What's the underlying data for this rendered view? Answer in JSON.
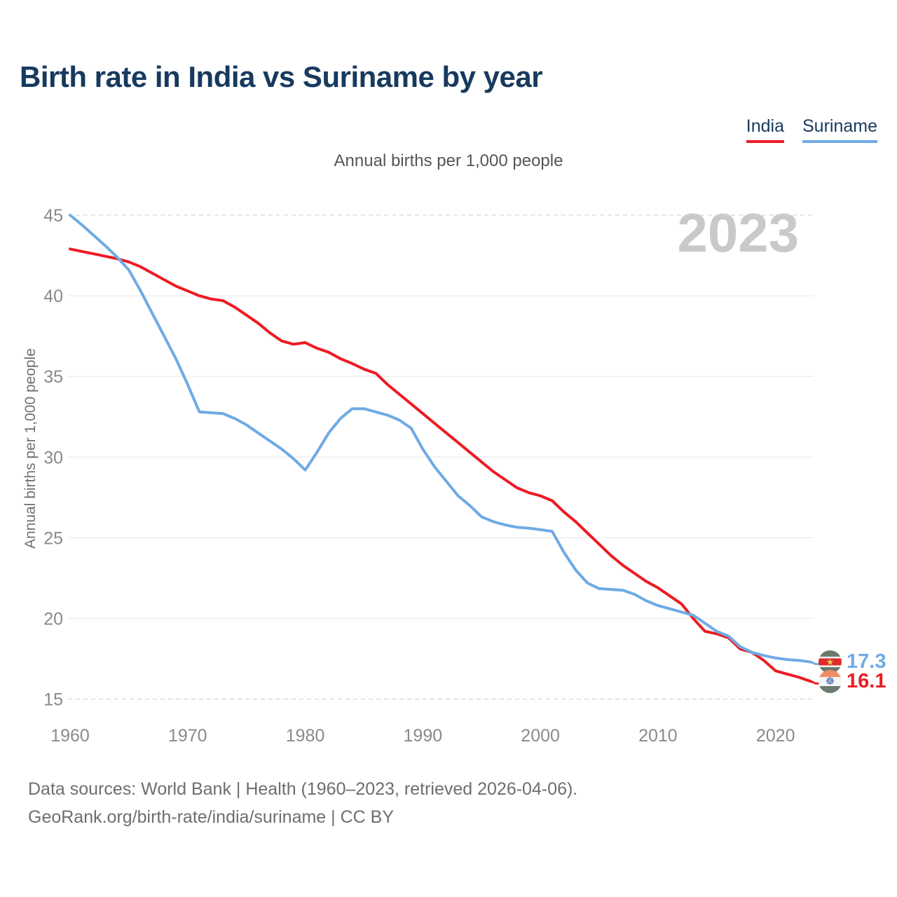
{
  "title": "Birth rate in India vs Suriname by year",
  "subtitle": "Annual births per 1,000 people",
  "watermark": "2023",
  "legend": {
    "india": {
      "label": "India",
      "color": "#ed1b24"
    },
    "suriname": {
      "label": "Suriname",
      "color": "#6fabe4"
    }
  },
  "y_axis": {
    "label": "Annual births per 1,000 people",
    "ticks": [
      45,
      40,
      35,
      30,
      25,
      20,
      15
    ]
  },
  "x_axis": {
    "ticks": [
      1960,
      1970,
      1980,
      1990,
      2000,
      2010,
      2020
    ]
  },
  "icons": {
    "suriname_star": "★",
    "india_chakra": "☸"
  },
  "end_labels": {
    "suriname": {
      "series": "Suriname",
      "value": "17.3",
      "color": "#6fabe4",
      "flag": "suriname-flag"
    },
    "india": {
      "series": "India",
      "value": "16.1",
      "color": "#ed1b24",
      "flag": "india-flag"
    }
  },
  "footer": {
    "line1": "Data sources: World Bank | Health (1960–2023, retrieved 2026-04-06).",
    "line2": "GeoRank.org/birth-rate/india/suriname | CC BY"
  },
  "chart_data": {
    "type": "line",
    "title": "Birth rate in India vs Suriname by year",
    "subtitle": "Annual births per 1,000 people",
    "xlabel": "",
    "ylabel": "Annual births per 1,000 people",
    "ylim": [
      15,
      45
    ],
    "xlim": [
      1960,
      2023
    ],
    "grid": "horizontal-dashed",
    "legend_position": "top-right",
    "watermark": "2023",
    "x": [
      1960,
      1961,
      1962,
      1963,
      1964,
      1965,
      1966,
      1967,
      1968,
      1969,
      1970,
      1971,
      1972,
      1973,
      1974,
      1975,
      1976,
      1977,
      1978,
      1979,
      1980,
      1981,
      1982,
      1983,
      1984,
      1985,
      1986,
      1987,
      1988,
      1989,
      1990,
      1991,
      1992,
      1993,
      1994,
      1995,
      1996,
      1997,
      1998,
      1999,
      2000,
      2001,
      2002,
      2003,
      2004,
      2005,
      2006,
      2007,
      2008,
      2009,
      2010,
      2011,
      2012,
      2013,
      2014,
      2015,
      2016,
      2017,
      2018,
      2019,
      2020,
      2021,
      2022,
      2023
    ],
    "series": [
      {
        "name": "India",
        "color": "#ed1b24",
        "values": [
          42.9,
          42.75,
          42.6,
          42.45,
          42.3,
          42.1,
          41.8,
          41.4,
          41.0,
          40.6,
          40.3,
          40.0,
          39.8,
          39.7,
          39.3,
          38.8,
          38.3,
          37.7,
          37.2,
          37.0,
          37.1,
          36.75,
          36.5,
          36.1,
          35.8,
          35.45,
          35.2,
          34.5,
          33.9,
          33.3,
          32.7,
          32.1,
          31.5,
          30.9,
          30.3,
          29.7,
          29.1,
          28.6,
          28.1,
          27.8,
          27.6,
          27.3,
          26.6,
          26.0,
          25.3,
          24.6,
          23.9,
          23.3,
          22.8,
          22.3,
          21.9,
          21.4,
          20.9,
          20.0,
          19.2,
          19.05,
          18.8,
          18.1,
          17.9,
          17.4,
          16.75,
          16.55,
          16.35,
          16.1
        ]
      },
      {
        "name": "Suriname",
        "color": "#6fabe4",
        "values": [
          45.0,
          44.4,
          43.75,
          43.1,
          42.4,
          41.6,
          40.3,
          38.9,
          37.5,
          36.1,
          34.5,
          32.8,
          32.75,
          32.7,
          32.4,
          32.0,
          31.5,
          31.0,
          30.5,
          29.9,
          29.2,
          30.3,
          31.5,
          32.4,
          33.0,
          33.0,
          32.8,
          32.6,
          32.3,
          31.8,
          30.5,
          29.4,
          28.5,
          27.6,
          27.0,
          26.3,
          26.0,
          25.8,
          25.65,
          25.6,
          25.5,
          25.4,
          24.1,
          23.0,
          22.2,
          21.85,
          21.8,
          21.75,
          21.5,
          21.1,
          20.8,
          20.6,
          20.4,
          20.2,
          19.7,
          19.2,
          18.9,
          18.25,
          17.9,
          17.7,
          17.55,
          17.45,
          17.4,
          17.3
        ]
      }
    ]
  }
}
